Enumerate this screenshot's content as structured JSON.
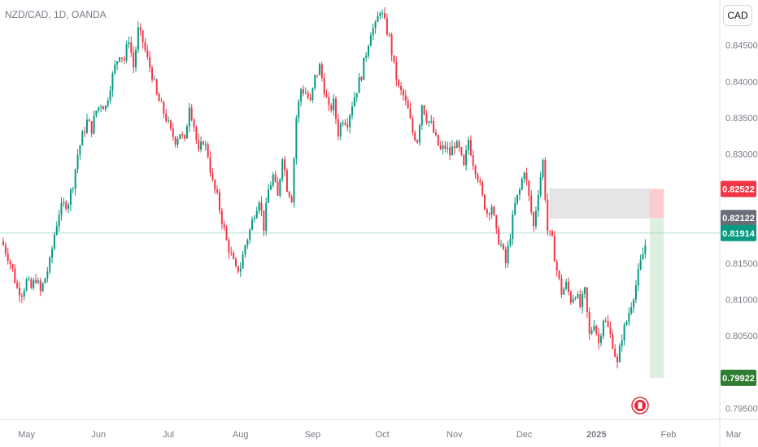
{
  "header": {
    "symbol": "NZD/CAD, 1D, OANDA",
    "currency_label": "CAD"
  },
  "colors": {
    "up": "#089981",
    "down": "#f23645",
    "current_line": "#a8dccf",
    "profit_zone": "#dcefe0",
    "stop_zone": "#fccbcd",
    "entry_zone": "#e6e6e8",
    "event_icon": "#e5283b"
  },
  "chart_data": {
    "type": "candlestick",
    "symbol": "NZD/CAD",
    "timeframe": "1D",
    "source": "OANDA",
    "ylim": [
      0.7935,
      0.851
    ],
    "yticks": [
      "0.84500",
      "0.84000",
      "0.83500",
      "0.83000",
      "0.81500",
      "0.81000",
      "0.80500",
      "0.79500"
    ],
    "xticks": [
      {
        "label": "May",
        "day": 10
      },
      {
        "label": "Jun",
        "day": 41
      },
      {
        "label": "Jul",
        "day": 71
      },
      {
        "label": "Aug",
        "day": 102
      },
      {
        "label": "Sep",
        "day": 133
      },
      {
        "label": "Oct",
        "day": 163
      },
      {
        "label": "Nov",
        "day": 194
      },
      {
        "label": "Dec",
        "day": 224
      },
      {
        "label": "2025",
        "day": 255
      },
      {
        "label": "Feb",
        "day": 286
      },
      {
        "label": "Mar",
        "day": 314
      }
    ],
    "anchors": [
      [
        0,
        0.8175
      ],
      [
        2,
        0.816
      ],
      [
        4,
        0.814
      ],
      [
        6,
        0.8115
      ],
      [
        8,
        0.811
      ],
      [
        10,
        0.8125
      ],
      [
        12,
        0.8115
      ],
      [
        14,
        0.813
      ],
      [
        16,
        0.811
      ],
      [
        18,
        0.813
      ],
      [
        20,
        0.815
      ],
      [
        22,
        0.819
      ],
      [
        24,
        0.822
      ],
      [
        26,
        0.823
      ],
      [
        28,
        0.8235
      ],
      [
        30,
        0.826
      ],
      [
        32,
        0.83
      ],
      [
        34,
        0.8325
      ],
      [
        36,
        0.8345
      ],
      [
        38,
        0.8335
      ],
      [
        40,
        0.836
      ],
      [
        42,
        0.837
      ],
      [
        44,
        0.8365
      ],
      [
        46,
        0.8395
      ],
      [
        48,
        0.842
      ],
      [
        50,
        0.844
      ],
      [
        52,
        0.843
      ],
      [
        54,
        0.846
      ],
      [
        56,
        0.842
      ],
      [
        58,
        0.847
      ],
      [
        60,
        0.8455
      ],
      [
        62,
        0.843
      ],
      [
        64,
        0.841
      ],
      [
        66,
        0.838
      ],
      [
        68,
        0.8365
      ],
      [
        70,
        0.835
      ],
      [
        72,
        0.833
      ],
      [
        74,
        0.832
      ],
      [
        76,
        0.833
      ],
      [
        78,
        0.8315
      ],
      [
        80,
        0.837
      ],
      [
        82,
        0.834
      ],
      [
        84,
        0.83
      ],
      [
        86,
        0.832
      ],
      [
        88,
        0.83
      ],
      [
        90,
        0.826
      ],
      [
        92,
        0.824
      ],
      [
        94,
        0.821
      ],
      [
        96,
        0.818
      ],
      [
        98,
        0.816
      ],
      [
        100,
        0.814
      ],
      [
        102,
        0.8145
      ],
      [
        104,
        0.8175
      ],
      [
        106,
        0.8195
      ],
      [
        108,
        0.822
      ],
      [
        110,
        0.824
      ],
      [
        112,
        0.82
      ],
      [
        114,
        0.825
      ],
      [
        116,
        0.827
      ],
      [
        118,
        0.824
      ],
      [
        120,
        0.83
      ],
      [
        122,
        0.8255
      ],
      [
        124,
        0.824
      ],
      [
        126,
        0.835
      ],
      [
        128,
        0.839
      ],
      [
        130,
        0.8385
      ],
      [
        132,
        0.837
      ],
      [
        134,
        0.8405
      ],
      [
        136,
        0.842
      ],
      [
        138,
        0.839
      ],
      [
        140,
        0.836
      ],
      [
        142,
        0.837
      ],
      [
        144,
        0.833
      ],
      [
        146,
        0.835
      ],
      [
        148,
        0.8345
      ],
      [
        150,
        0.837
      ],
      [
        152,
        0.839
      ],
      [
        154,
        0.841
      ],
      [
        156,
        0.844
      ],
      [
        158,
        0.847
      ],
      [
        160,
        0.8475
      ],
      [
        162,
        0.85
      ],
      [
        164,
        0.848
      ],
      [
        166,
        0.846
      ],
      [
        168,
        0.842
      ],
      [
        170,
        0.839
      ],
      [
        172,
        0.838
      ],
      [
        174,
        0.836
      ],
      [
        176,
        0.833
      ],
      [
        178,
        0.832
      ],
      [
        180,
        0.837
      ],
      [
        182,
        0.835
      ],
      [
        184,
        0.834
      ],
      [
        186,
        0.832
      ],
      [
        188,
        0.8305
      ],
      [
        190,
        0.831
      ],
      [
        192,
        0.83
      ],
      [
        194,
        0.8315
      ],
      [
        196,
        0.8305
      ],
      [
        198,
        0.828
      ],
      [
        200,
        0.832
      ],
      [
        202,
        0.829
      ],
      [
        204,
        0.827
      ],
      [
        206,
        0.824
      ],
      [
        208,
        0.822
      ],
      [
        210,
        0.823
      ],
      [
        212,
        0.819
      ],
      [
        214,
        0.8175
      ],
      [
        216,
        0.815
      ],
      [
        218,
        0.819
      ],
      [
        220,
        0.823
      ],
      [
        222,
        0.825
      ],
      [
        224,
        0.828
      ],
      [
        226,
        0.824
      ],
      [
        228,
        0.82
      ],
      [
        230,
        0.825
      ],
      [
        232,
        0.829
      ],
      [
        234,
        0.8195
      ],
      [
        236,
        0.818
      ],
      [
        238,
        0.814
      ],
      [
        240,
        0.811
      ],
      [
        242,
        0.812
      ],
      [
        244,
        0.81
      ],
      [
        246,
        0.811
      ],
      [
        248,
        0.809
      ],
      [
        250,
        0.811
      ],
      [
        252,
        0.805
      ],
      [
        254,
        0.807
      ],
      [
        256,
        0.804
      ],
      [
        258,
        0.8075
      ],
      [
        260,
        0.806
      ],
      [
        262,
        0.804
      ],
      [
        264,
        0.801
      ],
      [
        266,
        0.805
      ],
      [
        268,
        0.807
      ],
      [
        270,
        0.8095
      ],
      [
        272,
        0.812
      ],
      [
        274,
        0.815
      ],
      [
        276,
        0.8175
      ]
    ],
    "current_price": 0.81914,
    "price_labels": [
      {
        "value": 0.82522,
        "text": "0.82522",
        "kind": "stop"
      },
      {
        "value": 0.82122,
        "text": "0.82122",
        "kind": "entry"
      },
      {
        "value": 0.81914,
        "text": "0.81914",
        "kind": "current"
      },
      {
        "value": 0.79922,
        "text": "0.79922",
        "kind": "target"
      }
    ],
    "zones": {
      "entry": {
        "from_day": 235,
        "to_day": 278,
        "low": 0.82122,
        "high": 0.82522
      },
      "stop": {
        "from_day": 278,
        "to_day": 284,
        "low": 0.82122,
        "high": 0.82522
      },
      "target": {
        "from_day": 278,
        "to_day": 284,
        "low": 0.79922,
        "high": 0.82122
      }
    }
  }
}
